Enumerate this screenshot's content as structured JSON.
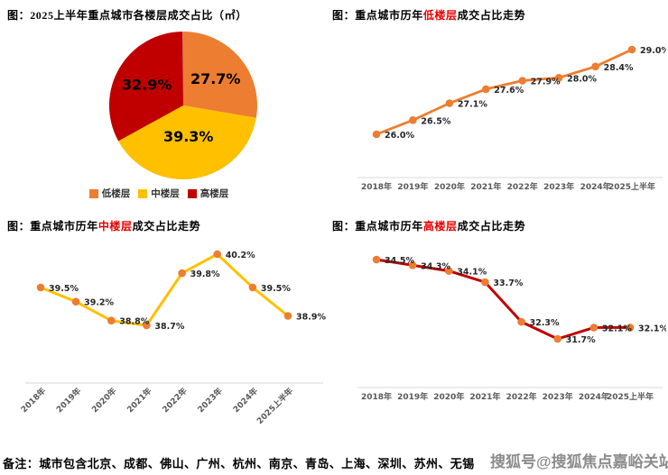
{
  "page": {
    "note": "备注：城市包含北京、成都、佛山、广州、杭州、南京、青岛、上海、深圳、苏州、无锡",
    "watermark": "搜狐号@搜狐焦点嘉峪关站"
  },
  "colors": {
    "orange": "#ED7D31",
    "yellow": "#FFC000",
    "red": "#C00000",
    "title_highlight": "#E80000",
    "axis_line": "#D9D9D9",
    "tick_label": "#595959",
    "data_label": "#262626"
  },
  "chart_data": [
    {
      "id": "pie-floor-share",
      "type": "pie",
      "title": {
        "prefix": "图：2025上半年重点城市各楼层成交占比（㎡）",
        "highlight": "",
        "suffix": ""
      },
      "categories": [
        "低楼层",
        "中楼层",
        "高楼层"
      ],
      "values": [
        27.7,
        39.3,
        32.9
      ],
      "labels": [
        "27.7%",
        "39.3%",
        "32.9%"
      ],
      "colors": [
        "#ED7D31",
        "#FFC000",
        "#C00000"
      ],
      "unit": "%",
      "legend_position": "bottom"
    },
    {
      "id": "line-low-floor",
      "type": "line",
      "title": {
        "prefix": "图：重点城市历年",
        "highlight": "低楼层",
        "suffix": "成交占比走势"
      },
      "categories": [
        "2018年",
        "2019年",
        "2020年",
        "2021年",
        "2022年",
        "2023年",
        "2024年",
        "2025上半年"
      ],
      "values": [
        26.0,
        26.5,
        27.1,
        27.6,
        27.9,
        28.0,
        28.4,
        29.0
      ],
      "labels": [
        "26.0%",
        "26.5%",
        "27.1%",
        "27.6%",
        "27.9%",
        "28.0%",
        "28.4%",
        "29.0%"
      ],
      "line_color": "#ED7D31",
      "marker_color": "#ED7D31",
      "ylim": [
        25.5,
        29.5
      ],
      "grid": false,
      "x_label_rotation": 0
    },
    {
      "id": "line-mid-floor",
      "type": "line",
      "title": {
        "prefix": "图：重点城市历年",
        "highlight": "中楼层",
        "suffix": "成交占比走势"
      },
      "categories": [
        "2018年",
        "2019年",
        "2020年",
        "2021年",
        "2022年",
        "2023年",
        "2024年",
        "2025上半年"
      ],
      "values": [
        39.5,
        39.2,
        38.8,
        38.7,
        39.8,
        40.2,
        39.5,
        38.9
      ],
      "labels": [
        "39.5%",
        "39.2%",
        "38.8%",
        "38.7%",
        "39.8%",
        "40.2%",
        "39.5%",
        "38.9%"
      ],
      "line_color": "#FFC000",
      "marker_color": "#ED7D31",
      "ylim": [
        38.0,
        40.8
      ],
      "grid": false,
      "x_label_rotation": -45
    },
    {
      "id": "line-high-floor",
      "type": "line",
      "title": {
        "prefix": "图：重点城市历年",
        "highlight": "高楼层",
        "suffix": "成交占比走势"
      },
      "categories": [
        "2018年",
        "2019年",
        "2020年",
        "2021年",
        "2022年",
        "2023年",
        "2024年",
        "2025上半年"
      ],
      "values": [
        34.5,
        34.3,
        34.1,
        33.7,
        32.3,
        31.7,
        32.1,
        32.1
      ],
      "labels": [
        "34.5%",
        "34.3%",
        "34.1%",
        "33.7%",
        "32.3%",
        "31.7%",
        "32.1%",
        "32.1%"
      ],
      "line_color": "#C00000",
      "marker_color": "#ED7D31",
      "ylim": [
        31.0,
        35.0
      ],
      "grid": false,
      "x_label_rotation": 0
    }
  ]
}
